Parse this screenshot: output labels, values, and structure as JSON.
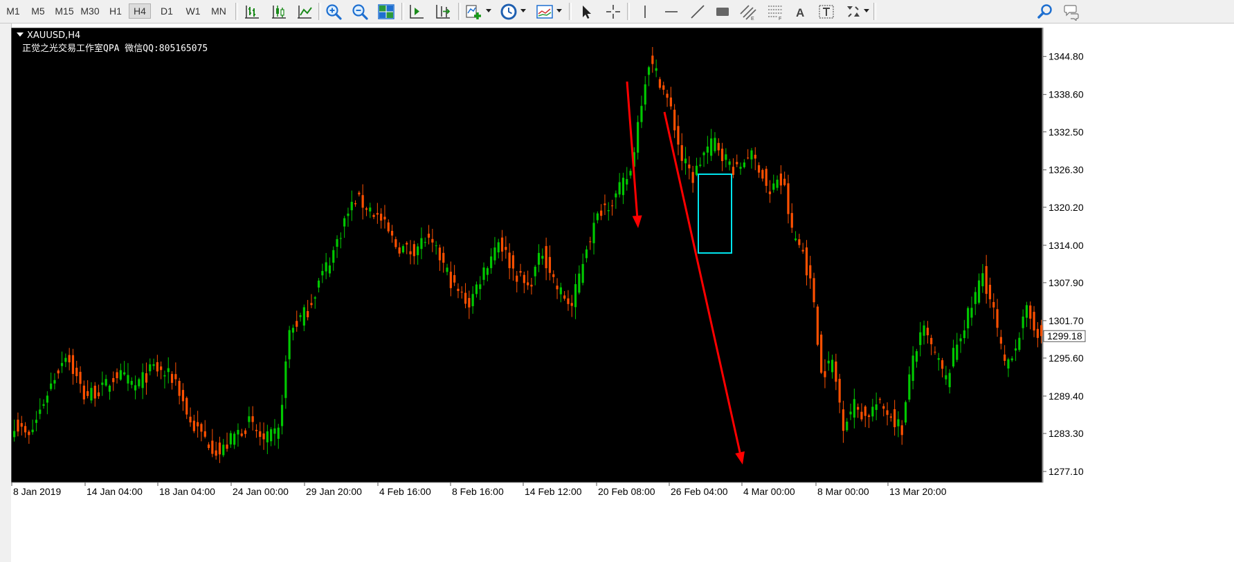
{
  "toolbar": {
    "timeframes": [
      "M1",
      "M5",
      "M15",
      "M30",
      "H1",
      "H4",
      "D1",
      "W1",
      "MN"
    ],
    "selected_timeframe": "H4",
    "text_tool_label": "A"
  },
  "chart": {
    "symbol_label": "XAUUSD,H4",
    "watermark": "正觉之光交易工作室QPA 微信QQ:805165075",
    "current_price": "1299.18",
    "colors": {
      "background": "#000000",
      "bull_candle": "#00c800",
      "bear_candle": "#ff5000",
      "arrows": "#ff0000",
      "highlight_box": "#00e5ee",
      "axis_text": "#000000"
    }
  },
  "chart_data": {
    "type": "candlestick",
    "symbol": "XAUUSD",
    "timeframe": "H4",
    "y_ticks": [
      1344.8,
      1338.6,
      1332.5,
      1326.3,
      1320.2,
      1314.0,
      1307.9,
      1301.7,
      1295.6,
      1289.4,
      1283.3,
      1277.1
    ],
    "y_tick_labels": [
      "1344.80",
      "1338.60",
      "1332.50",
      "1326.30",
      "1320.20",
      "1314.00",
      "1307.90",
      "1301.70",
      "1295.60",
      "1289.40",
      "1283.30",
      "1277.10"
    ],
    "ylim": [
      1275.0,
      1351.0
    ],
    "x_tick_labels": [
      "8 Jan 2019",
      "14 Jan 04:00",
      "18 Jan 04:00",
      "24 Jan 00:00",
      "29 Jan 20:00",
      "4 Feb 16:00",
      "8 Feb 16:00",
      "14 Feb 12:00",
      "20 Feb 08:00",
      "26 Feb 04:00",
      "4 Mar 00:00",
      "8 Mar 00:00",
      "13 Mar 20:00"
    ],
    "last_price": 1299.18,
    "close_path": [
      [
        0,
        1285.0
      ],
      [
        4,
        1282.5
      ],
      [
        9,
        1290.0
      ],
      [
        14,
        1296.5
      ],
      [
        19,
        1289.5
      ],
      [
        24,
        1290.5
      ],
      [
        28,
        1293.0
      ],
      [
        33,
        1291.0
      ],
      [
        38,
        1294.0
      ],
      [
        44,
        1292.0
      ],
      [
        48,
        1285.0
      ],
      [
        52,
        1282.5
      ],
      [
        56,
        1280.0
      ],
      [
        60,
        1283.0
      ],
      [
        64,
        1285.0
      ],
      [
        68,
        1282.0
      ],
      [
        72,
        1283.5
      ],
      [
        75,
        1300.0
      ],
      [
        80,
        1303.5
      ],
      [
        83,
        1308.0
      ],
      [
        87,
        1313.0
      ],
      [
        90,
        1318.0
      ],
      [
        93,
        1321.5
      ],
      [
        97,
        1320.0
      ],
      [
        100,
        1318.0
      ],
      [
        104,
        1314.0
      ],
      [
        108,
        1313.0
      ],
      [
        112,
        1315.0
      ],
      [
        116,
        1312.0
      ],
      [
        120,
        1307.0
      ],
      [
        124,
        1304.5
      ],
      [
        128,
        1310.0
      ],
      [
        132,
        1315.0
      ],
      [
        136,
        1310.0
      ],
      [
        140,
        1307.0
      ],
      [
        144,
        1313.0
      ],
      [
        148,
        1307.0
      ],
      [
        152,
        1304.0
      ],
      [
        156,
        1314.0
      ],
      [
        160,
        1320.0
      ],
      [
        164,
        1322.0
      ],
      [
        168,
        1326.0
      ],
      [
        171,
        1338.0
      ],
      [
        173,
        1344.0
      ],
      [
        176,
        1341.0
      ],
      [
        179,
        1336.0
      ],
      [
        182,
        1328.0
      ],
      [
        185,
        1325.0
      ],
      [
        188,
        1329.0
      ],
      [
        191,
        1331.0
      ],
      [
        194,
        1328.0
      ],
      [
        197,
        1326.0
      ],
      [
        200,
        1329.0
      ],
      [
        203,
        1327.0
      ],
      [
        206,
        1322.0
      ],
      [
        208,
        1325.0
      ],
      [
        210,
        1323.0
      ],
      [
        212,
        1316.0
      ],
      [
        215,
        1313.0
      ],
      [
        218,
        1305.0
      ],
      [
        220,
        1293.0
      ],
      [
        223,
        1295.0
      ],
      [
        226,
        1285.0
      ],
      [
        229,
        1288.0
      ],
      [
        232,
        1286.0
      ],
      [
        235,
        1288.0
      ],
      [
        238,
        1287.0
      ],
      [
        242,
        1284.0
      ],
      [
        245,
        1296.0
      ],
      [
        248,
        1300.0
      ],
      [
        251,
        1296.0
      ],
      [
        254,
        1292.0
      ],
      [
        257,
        1298.0
      ],
      [
        261,
        1304.0
      ],
      [
        264,
        1309.5
      ],
      [
        267,
        1303.0
      ],
      [
        270,
        1294.0
      ],
      [
        273,
        1298.0
      ],
      [
        276,
        1303.0
      ],
      [
        278,
        1301.0
      ],
      [
        280,
        1299.18
      ]
    ]
  }
}
